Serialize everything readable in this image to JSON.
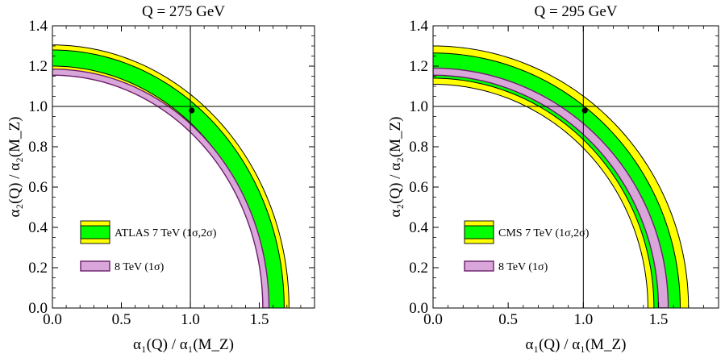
{
  "chart_data": [
    {
      "type": "band-contour",
      "title": "Q = 275 GeV",
      "xlabel": "α₁(Q) / α₁(M_Z)",
      "ylabel": "α₂(Q) / α₂(M_Z)",
      "xlim": [
        0,
        1.9
      ],
      "ylim": [
        0,
        1.4
      ],
      "xticks": [
        "0.0",
        "0.5",
        "1.0",
        "1.5"
      ],
      "yticks": [
        "0.0",
        "0.2",
        "0.4",
        "0.6",
        "0.8",
        "1.0",
        "1.2",
        "1.4"
      ],
      "reference_lines": {
        "x": 1.0,
        "y": 1.0
      },
      "reference_point": {
        "x": 1.01,
        "y": 0.98
      },
      "bands": [
        {
          "name": "ATLAS 7 TeV 2σ",
          "color": "#ffff00",
          "inner": {
            "x0": 1.525,
            "y0": 1.18
          },
          "outer": {
            "x0": 1.715,
            "y0": 1.305
          }
        },
        {
          "name": "ATLAS 7 TeV 1σ",
          "color": "#00ff00",
          "inner": {
            "x0": 1.555,
            "y0": 1.2
          },
          "outer": {
            "x0": 1.68,
            "y0": 1.28
          }
        },
        {
          "name": "8 TeV 1σ",
          "color": "#d9a6d9",
          "inner": {
            "x0": 1.525,
            "y0": 1.155
          },
          "outer": {
            "x0": 1.57,
            "y0": 1.185
          }
        }
      ],
      "legend": {
        "entries": [
          {
            "label": "ATLAS 7 TeV (1σ,2σ)",
            "kind": "double",
            "colors": [
              "#ffff00",
              "#00ff00"
            ]
          },
          {
            "label": "8 TeV  (1σ)",
            "kind": "single",
            "colors": [
              "#d9a6d9"
            ]
          }
        ]
      }
    },
    {
      "type": "band-contour",
      "title": "Q = 295 GeV",
      "xlabel": "α₁(Q) / α₁(M_Z)",
      "ylabel": "α₂(Q) / α₂(M_Z)",
      "xlim": [
        0,
        1.9
      ],
      "ylim": [
        0,
        1.4
      ],
      "xticks": [
        "0.0",
        "0.5",
        "1.0",
        "1.5"
      ],
      "yticks": [
        "0.0",
        "0.2",
        "0.4",
        "0.6",
        "0.8",
        "1.0",
        "1.2",
        "1.4"
      ],
      "reference_lines": {
        "x": 1.0,
        "y": 1.0
      },
      "reference_point": {
        "x": 1.01,
        "y": 0.98
      },
      "bands": [
        {
          "name": "CMS 7 TeV 2σ",
          "color": "#ffff00",
          "inner": {
            "x0": 1.43,
            "y0": 1.11
          },
          "outer": {
            "x0": 1.7,
            "y0": 1.3
          }
        },
        {
          "name": "CMS 7 TeV 1σ",
          "color": "#00ff00",
          "inner": {
            "x0": 1.47,
            "y0": 1.14
          },
          "outer": {
            "x0": 1.645,
            "y0": 1.265
          }
        },
        {
          "name": "8 TeV 1σ",
          "color": "#d9a6d9",
          "inner": {
            "x0": 1.5,
            "y0": 1.155
          },
          "outer": {
            "x0": 1.565,
            "y0": 1.19
          }
        }
      ],
      "legend": {
        "entries": [
          {
            "label": "CMS 7 TeV (1σ,2σ)",
            "kind": "double",
            "colors": [
              "#ffff00",
              "#00ff00"
            ]
          },
          {
            "label": "8 TeV  (1σ)",
            "kind": "single",
            "colors": [
              "#d9a6d9"
            ]
          }
        ]
      }
    }
  ]
}
